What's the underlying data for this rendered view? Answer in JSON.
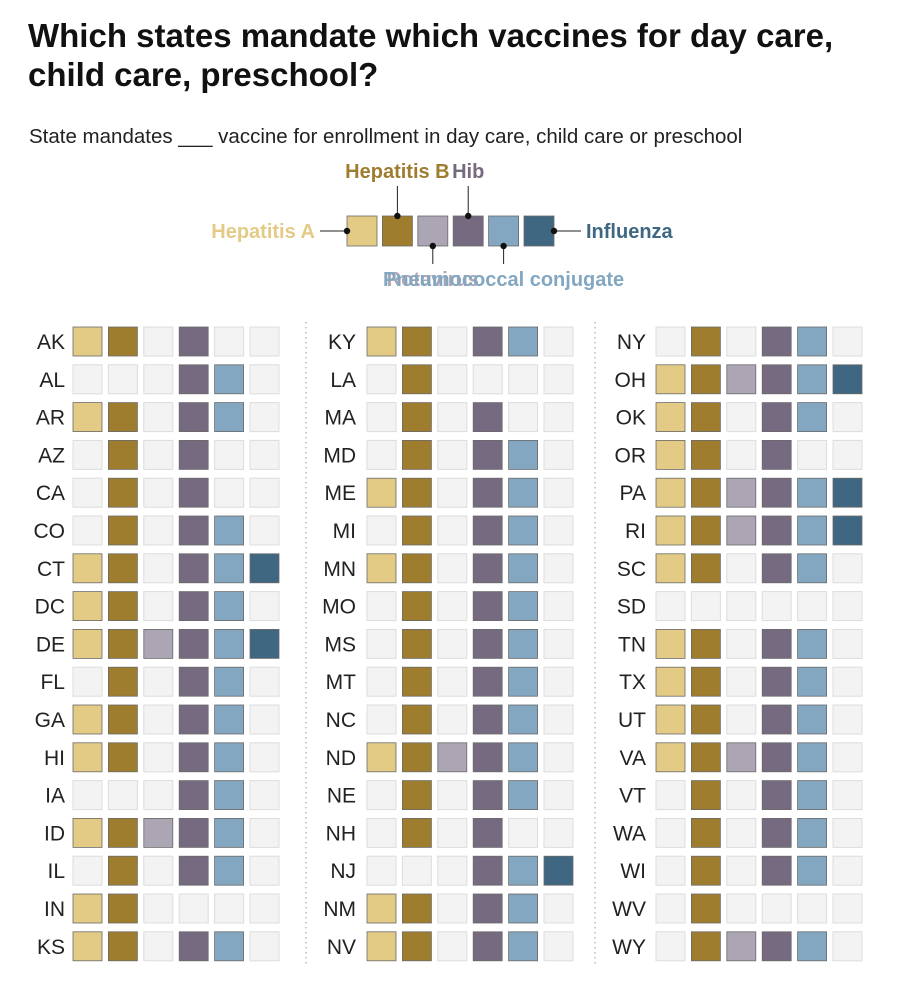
{
  "title": "Which states mandate which vaccines for day care, child care, preschool?",
  "subtitle": "State mandates ___ vaccine for enrollment in day care, child care or preschool",
  "colors": {
    "off": "#f3f3f3",
    "off_border": "#dcdcdc",
    "on_border": "#6a6a6a"
  },
  "chart_data": {
    "type": "table",
    "vaccines": [
      {
        "name": "Hepatitis A",
        "color": "#e3cb86"
      },
      {
        "name": "Hepatitis B",
        "color": "#9e7d2f"
      },
      {
        "name": "Rotavirus",
        "color": "#aba5b4"
      },
      {
        "name": "Hib",
        "color": "#766a80"
      },
      {
        "name": "Pneumococcal conjugate",
        "color": "#83a7c1"
      },
      {
        "name": "Influenza",
        "color": "#3f6781"
      }
    ],
    "states": [
      {
        "state": "AK",
        "mandates": [
          1,
          1,
          0,
          1,
          0,
          0
        ]
      },
      {
        "state": "AL",
        "mandates": [
          0,
          0,
          0,
          1,
          1,
          0
        ]
      },
      {
        "state": "AR",
        "mandates": [
          1,
          1,
          0,
          1,
          1,
          0
        ]
      },
      {
        "state": "AZ",
        "mandates": [
          0,
          1,
          0,
          1,
          0,
          0
        ]
      },
      {
        "state": "CA",
        "mandates": [
          0,
          1,
          0,
          1,
          0,
          0
        ]
      },
      {
        "state": "CO",
        "mandates": [
          0,
          1,
          0,
          1,
          1,
          0
        ]
      },
      {
        "state": "CT",
        "mandates": [
          1,
          1,
          0,
          1,
          1,
          1
        ]
      },
      {
        "state": "DC",
        "mandates": [
          1,
          1,
          0,
          1,
          1,
          0
        ]
      },
      {
        "state": "DE",
        "mandates": [
          1,
          1,
          1,
          1,
          1,
          1
        ]
      },
      {
        "state": "FL",
        "mandates": [
          0,
          1,
          0,
          1,
          1,
          0
        ]
      },
      {
        "state": "GA",
        "mandates": [
          1,
          1,
          0,
          1,
          1,
          0
        ]
      },
      {
        "state": "HI",
        "mandates": [
          1,
          1,
          0,
          1,
          1,
          0
        ]
      },
      {
        "state": "IA",
        "mandates": [
          0,
          0,
          0,
          1,
          1,
          0
        ]
      },
      {
        "state": "ID",
        "mandates": [
          1,
          1,
          1,
          1,
          1,
          0
        ]
      },
      {
        "state": "IL",
        "mandates": [
          0,
          1,
          0,
          1,
          1,
          0
        ]
      },
      {
        "state": "IN",
        "mandates": [
          1,
          1,
          0,
          0,
          0,
          0
        ]
      },
      {
        "state": "KS",
        "mandates": [
          1,
          1,
          0,
          1,
          1,
          0
        ]
      },
      {
        "state": "KY",
        "mandates": [
          1,
          1,
          0,
          1,
          1,
          0
        ]
      },
      {
        "state": "LA",
        "mandates": [
          0,
          1,
          0,
          0,
          0,
          0
        ]
      },
      {
        "state": "MA",
        "mandates": [
          0,
          1,
          0,
          1,
          0,
          0
        ]
      },
      {
        "state": "MD",
        "mandates": [
          0,
          1,
          0,
          1,
          1,
          0
        ]
      },
      {
        "state": "ME",
        "mandates": [
          1,
          1,
          0,
          1,
          1,
          0
        ]
      },
      {
        "state": "MI",
        "mandates": [
          0,
          1,
          0,
          1,
          1,
          0
        ]
      },
      {
        "state": "MN",
        "mandates": [
          1,
          1,
          0,
          1,
          1,
          0
        ]
      },
      {
        "state": "MO",
        "mandates": [
          0,
          1,
          0,
          1,
          1,
          0
        ]
      },
      {
        "state": "MS",
        "mandates": [
          0,
          1,
          0,
          1,
          1,
          0
        ]
      },
      {
        "state": "MT",
        "mandates": [
          0,
          1,
          0,
          1,
          1,
          0
        ]
      },
      {
        "state": "NC",
        "mandates": [
          0,
          1,
          0,
          1,
          1,
          0
        ]
      },
      {
        "state": "ND",
        "mandates": [
          1,
          1,
          1,
          1,
          1,
          0
        ]
      },
      {
        "state": "NE",
        "mandates": [
          0,
          1,
          0,
          1,
          1,
          0
        ]
      },
      {
        "state": "NH",
        "mandates": [
          0,
          1,
          0,
          1,
          0,
          0
        ]
      },
      {
        "state": "NJ",
        "mandates": [
          0,
          0,
          0,
          1,
          1,
          1
        ]
      },
      {
        "state": "NM",
        "mandates": [
          1,
          1,
          0,
          1,
          1,
          0
        ]
      },
      {
        "state": "NV",
        "mandates": [
          1,
          1,
          0,
          1,
          1,
          0
        ]
      },
      {
        "state": "NY",
        "mandates": [
          0,
          1,
          0,
          1,
          1,
          0
        ]
      },
      {
        "state": "OH",
        "mandates": [
          1,
          1,
          1,
          1,
          1,
          1
        ]
      },
      {
        "state": "OK",
        "mandates": [
          1,
          1,
          0,
          1,
          1,
          0
        ]
      },
      {
        "state": "OR",
        "mandates": [
          1,
          1,
          0,
          1,
          0,
          0
        ]
      },
      {
        "state": "PA",
        "mandates": [
          1,
          1,
          1,
          1,
          1,
          1
        ]
      },
      {
        "state": "RI",
        "mandates": [
          1,
          1,
          1,
          1,
          1,
          1
        ]
      },
      {
        "state": "SC",
        "mandates": [
          1,
          1,
          0,
          1,
          1,
          0
        ]
      },
      {
        "state": "SD",
        "mandates": [
          0,
          0,
          0,
          0,
          0,
          0
        ]
      },
      {
        "state": "TN",
        "mandates": [
          1,
          1,
          0,
          1,
          1,
          0
        ]
      },
      {
        "state": "TX",
        "mandates": [
          1,
          1,
          0,
          1,
          1,
          0
        ]
      },
      {
        "state": "UT",
        "mandates": [
          1,
          1,
          0,
          1,
          1,
          0
        ]
      },
      {
        "state": "VA",
        "mandates": [
          1,
          1,
          1,
          1,
          1,
          0
        ]
      },
      {
        "state": "VT",
        "mandates": [
          0,
          1,
          0,
          1,
          1,
          0
        ]
      },
      {
        "state": "WA",
        "mandates": [
          0,
          1,
          0,
          1,
          1,
          0
        ]
      },
      {
        "state": "WI",
        "mandates": [
          0,
          1,
          0,
          1,
          1,
          0
        ]
      },
      {
        "state": "WV",
        "mandates": [
          0,
          1,
          0,
          0,
          0,
          0
        ]
      },
      {
        "state": "WY",
        "mandates": [
          0,
          1,
          1,
          1,
          1,
          0
        ]
      }
    ]
  }
}
